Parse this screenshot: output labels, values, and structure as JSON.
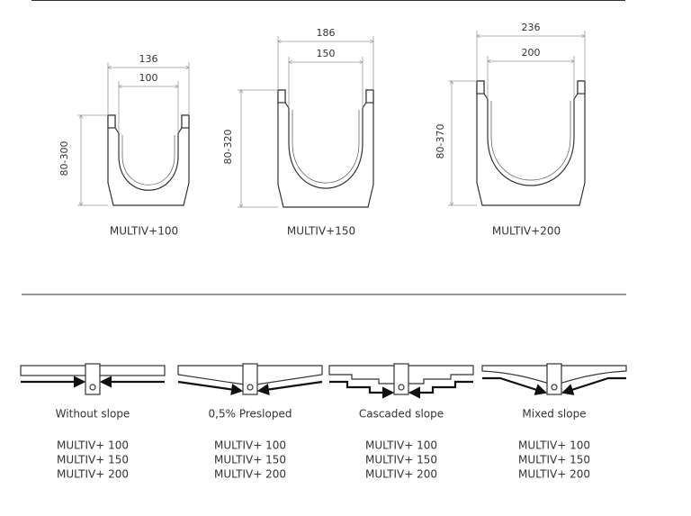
{
  "channels": [
    {
      "outer_width": "136",
      "inner_width": "100",
      "height": "80-300",
      "name": "MULTIV+100"
    },
    {
      "outer_width": "186",
      "inner_width": "150",
      "height": "80-320",
      "name": "MULTIV+150"
    },
    {
      "outer_width": "236",
      "inner_width": "200",
      "height": "80-370",
      "name": "MULTIV+200"
    }
  ],
  "slopes": [
    {
      "title": "Without slope",
      "models": [
        "MULTIV+ 100",
        "MULTIV+ 150",
        "MULTIV+ 200"
      ]
    },
    {
      "title": "0,5% Presloped",
      "models": [
        "MULTIV+ 100",
        "MULTIV+ 150",
        "MULTIV+ 200"
      ]
    },
    {
      "title": "Cascaded slope",
      "models": [
        "MULTIV+ 100",
        "MULTIV+ 150",
        "MULTIV+ 200"
      ]
    },
    {
      "title": "Mixed slope",
      "models": [
        "MULTIV+ 100",
        "MULTIV+ 150",
        "MULTIV+ 200"
      ]
    }
  ]
}
